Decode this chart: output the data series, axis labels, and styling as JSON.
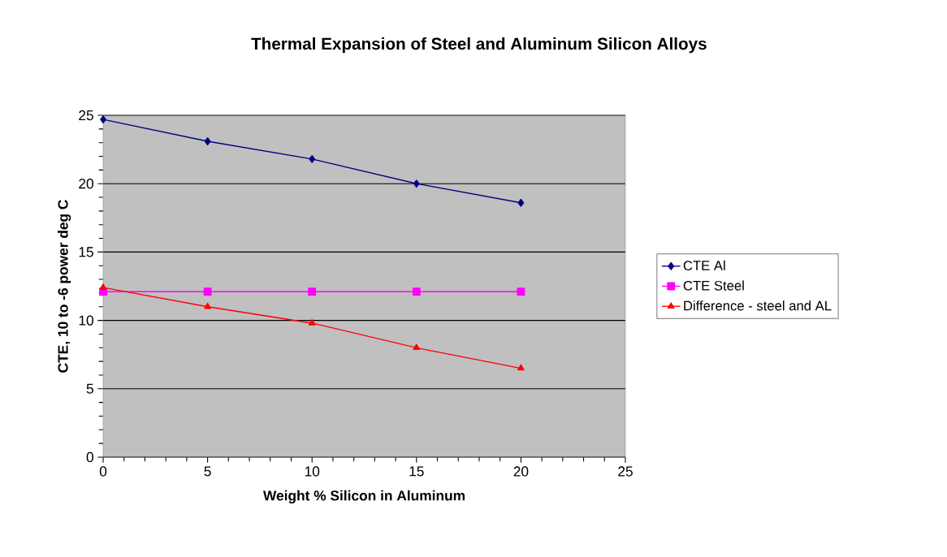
{
  "chart_data": {
    "type": "line",
    "title": "Thermal Expansion of Steel and Aluminum Silicon Alloys",
    "xlabel": "Weight % Silicon in Aluminum",
    "ylabel": "CTE, 10 to -6 power deg C",
    "x": [
      0,
      5,
      10,
      15,
      20
    ],
    "series": [
      {
        "name": "CTE Al",
        "color": "#000080",
        "marker": "diamond",
        "values": [
          24.7,
          23.1,
          21.8,
          20.0,
          18.6
        ]
      },
      {
        "name": "CTE Steel",
        "color": "#ff00ff",
        "marker": "square",
        "values": [
          12.1,
          12.1,
          12.1,
          12.1,
          12.1
        ]
      },
      {
        "name": "Difference - steel and AL",
        "color": "#ff0000",
        "marker": "triangle",
        "values": [
          12.4,
          11.0,
          9.8,
          8.0,
          6.5
        ]
      }
    ],
    "xlim": [
      0,
      25
    ],
    "xticks": [
      0,
      5,
      10,
      15,
      20,
      25
    ],
    "ylim": [
      0,
      25
    ],
    "yticks": [
      0,
      5,
      10,
      15,
      20,
      25
    ],
    "grid": "y",
    "legend": "right",
    "line_style": "solid"
  }
}
